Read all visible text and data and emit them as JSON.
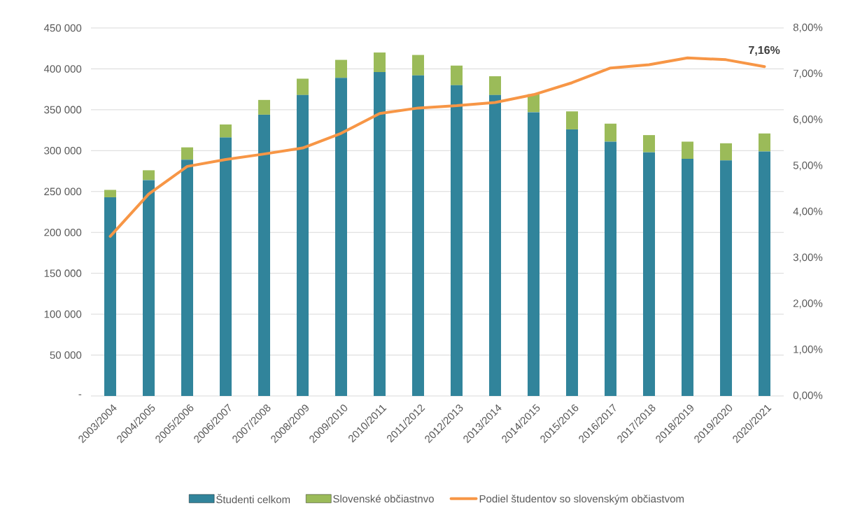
{
  "chart_data": {
    "type": "bar",
    "stacked": true,
    "categories": [
      "2003/2004",
      "2004/2005",
      "2005/2006",
      "2006/2007",
      "2007/2008",
      "2008/2009",
      "2009/2010",
      "2010/2011",
      "2011/2012",
      "2012/2013",
      "2013/2014",
      "2014/2015",
      "2015/2016",
      "2016/2017",
      "2017/2018",
      "2018/2019",
      "2019/2020",
      "2020/2021"
    ],
    "series": [
      {
        "name": "Študenti celkom",
        "color": "#31849b",
        "values": [
          243000,
          264000,
          289000,
          316000,
          344000,
          368000,
          389000,
          396000,
          392000,
          380000,
          368000,
          347000,
          326000,
          311000,
          298000,
          290000,
          288000,
          299000
        ]
      },
      {
        "name": "Slovenské občiastnvo",
        "color": "#9bbb59",
        "values": [
          9000,
          12000,
          15000,
          16000,
          18000,
          20000,
          22000,
          24000,
          25000,
          24000,
          23000,
          22000,
          22000,
          22000,
          21000,
          21000,
          21000,
          22000
        ]
      },
      {
        "name": "Podiel študentov so slovenským občiastvom",
        "type": "line",
        "axis": "y2",
        "color": "#f79646",
        "values": [
          3.47,
          4.39,
          4.99,
          5.14,
          5.26,
          5.39,
          5.71,
          6.14,
          6.26,
          6.31,
          6.38,
          6.55,
          6.81,
          7.13,
          7.2,
          7.35,
          7.31,
          7.16
        ]
      }
    ],
    "ylim": [
      0,
      450000
    ],
    "yticks": [
      {
        "value": 0,
        "label": "-"
      },
      {
        "value": 50000,
        "label": "50 000"
      },
      {
        "value": 100000,
        "label": "100 000"
      },
      {
        "value": 150000,
        "label": "150 000"
      },
      {
        "value": 200000,
        "label": "200 000"
      },
      {
        "value": 250000,
        "label": "250 000"
      },
      {
        "value": 300000,
        "label": "300 000"
      },
      {
        "value": 350000,
        "label": "350 000"
      },
      {
        "value": 400000,
        "label": "400 000"
      },
      {
        "value": 450000,
        "label": "450 000"
      }
    ],
    "y2lim": [
      0,
      8
    ],
    "y2ticks": [
      {
        "value": 0,
        "label": "0,00%"
      },
      {
        "value": 1,
        "label": "1,00%"
      },
      {
        "value": 2,
        "label": "2,00%"
      },
      {
        "value": 3,
        "label": "3,00%"
      },
      {
        "value": 4,
        "label": "4,00%"
      },
      {
        "value": 5,
        "label": "5,00%"
      },
      {
        "value": 6,
        "label": "6,00%"
      },
      {
        "value": 7,
        "label": "7,00%"
      },
      {
        "value": 8,
        "label": "8,00%"
      }
    ],
    "annotations": [
      "7,16%"
    ],
    "grid": "y",
    "legend": "bottom"
  }
}
